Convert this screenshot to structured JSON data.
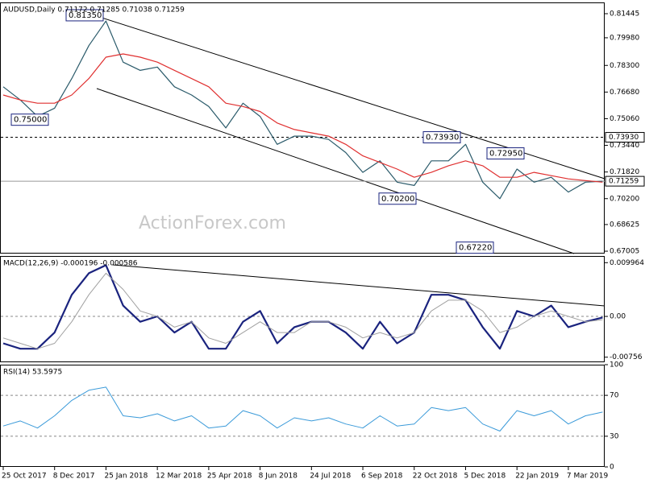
{
  "chart_data": [
    {
      "type": "line",
      "title": "AUDUSD,Daily 0.71172 0.71285 0.71038 0.71259",
      "watermark": "ActionForex.com",
      "series": [
        {
          "color": "#2a5a6a",
          "values": [
            0.77,
            0.762,
            0.752,
            0.757,
            0.775,
            0.795,
            0.81,
            0.785,
            0.78,
            0.782,
            0.77,
            0.765,
            0.758,
            0.745,
            0.76,
            0.752,
            0.735,
            0.74,
            0.74,
            0.738,
            0.73,
            0.718,
            0.725,
            0.712,
            0.71,
            0.725,
            0.725,
            0.735,
            0.712,
            0.702,
            0.72,
            0.712,
            0.715,
            0.706,
            0.712,
            0.71259
          ]
        },
        {
          "color": "#e03030",
          "values": [
            0.765,
            0.762,
            0.76,
            0.76,
            0.765,
            0.775,
            0.788,
            0.79,
            0.788,
            0.785,
            0.78,
            0.775,
            0.77,
            0.76,
            0.758,
            0.755,
            0.748,
            0.744,
            0.742,
            0.74,
            0.735,
            0.728,
            0.724,
            0.72,
            0.715,
            0.718,
            0.722,
            0.725,
            0.722,
            0.715,
            0.715,
            0.718,
            0.716,
            0.714,
            0.713,
            0.712
          ]
        }
      ],
      "ylim": [
        0.6686,
        0.8213
      ],
      "yticks": [
        0.81445,
        {
          "value": 0.7998,
          "label": "0.79980"
        },
        {
          "value": 0.783,
          "label": "0.78300"
        },
        {
          "value": 0.7668,
          "label": "0.76680"
        },
        {
          "value": 0.7506,
          "label": "0.75060"
        },
        {
          "value": 0.7344,
          "label": "0.73440"
        },
        {
          "value": 0.7182,
          "label": "0.71820"
        },
        {
          "value": 0.702,
          "label": "0.70200"
        },
        0.68625,
        0.67005
      ],
      "hlines": [
        {
          "value": 0.7393,
          "label": "0.73930",
          "dashed": true
        },
        {
          "value": 0.71259,
          "label": "0.71259",
          "dashed": false
        }
      ],
      "annotations": [
        {
          "value": 0.8135,
          "label": "0.81350"
        },
        {
          "value": 0.75,
          "label": "0.75000"
        },
        {
          "value": 0.7393,
          "label": "0.73930"
        },
        {
          "value": 0.7295,
          "label": "0.72950"
        },
        {
          "value": 0.702,
          "label": "0.70200"
        },
        {
          "value": 0.6722,
          "label": "0.67220"
        }
      ]
    },
    {
      "type": "line",
      "title": "MACD(12,26,9) -0.000196 -0.000586",
      "series": [
        {
          "color": "#1a237e",
          "values": [
            -0.005,
            -0.006,
            -0.006,
            -0.003,
            0.004,
            0.008,
            0.0095,
            0.002,
            -0.001,
            0.0,
            -0.003,
            -0.001,
            -0.006,
            -0.006,
            -0.001,
            0.001,
            -0.005,
            -0.002,
            -0.001,
            -0.001,
            -0.003,
            -0.006,
            -0.001,
            -0.005,
            -0.003,
            0.004,
            0.004,
            0.003,
            -0.002,
            -0.006,
            0.001,
            0.0,
            0.002,
            -0.002,
            -0.001,
            -0.0002
          ]
        },
        {
          "color": "#a0a0a0",
          "values": [
            -0.004,
            -0.005,
            -0.006,
            -0.005,
            -0.001,
            0.004,
            0.008,
            0.005,
            0.001,
            0.0,
            -0.002,
            -0.001,
            -0.004,
            -0.005,
            -0.003,
            -0.001,
            -0.003,
            -0.003,
            -0.001,
            -0.001,
            -0.002,
            -0.004,
            -0.003,
            -0.004,
            -0.003,
            0.001,
            0.003,
            0.003,
            0.001,
            -0.003,
            -0.002,
            0.0,
            0.001,
            0.0,
            -0.001,
            -0.0006
          ]
        }
      ],
      "ylim": [
        -0.0085,
        0.0112
      ],
      "yticks": [
        0.009964,
        {
          "value": 0,
          "label": "0.00"
        },
        -0.00756
      ],
      "levels": [
        0
      ]
    },
    {
      "type": "line",
      "title": "RSI(14) 53.5975",
      "categories": [
        "25 Oct 2017",
        null,
        null,
        "8 Dec 2017",
        null,
        null,
        "25 Jan 2018",
        null,
        null,
        "12 Mar 2018",
        null,
        null,
        "25 Apr 2018",
        null,
        null,
        "8 Jun 2018",
        null,
        null,
        "24 Jul 2018",
        null,
        null,
        "6 Sep 2018",
        null,
        null,
        "22 Oct 2018",
        null,
        null,
        "5 Dec 2018",
        null,
        null,
        "22 Jan 2019",
        null,
        null,
        "7 Mar 2019",
        null,
        null
      ],
      "series": [
        {
          "color": "#3a9ad9",
          "values": [
            40,
            45,
            38,
            50,
            65,
            75,
            78,
            50,
            48,
            52,
            45,
            50,
            38,
            40,
            55,
            50,
            38,
            48,
            45,
            48,
            42,
            38,
            50,
            40,
            42,
            58,
            55,
            58,
            42,
            35,
            55,
            50,
            55,
            42,
            50,
            53.5975
          ]
        }
      ],
      "ylim": [
        0,
        100
      ],
      "yticks": [
        100,
        70,
        30,
        0
      ],
      "levels": [
        70,
        30
      ]
    }
  ]
}
